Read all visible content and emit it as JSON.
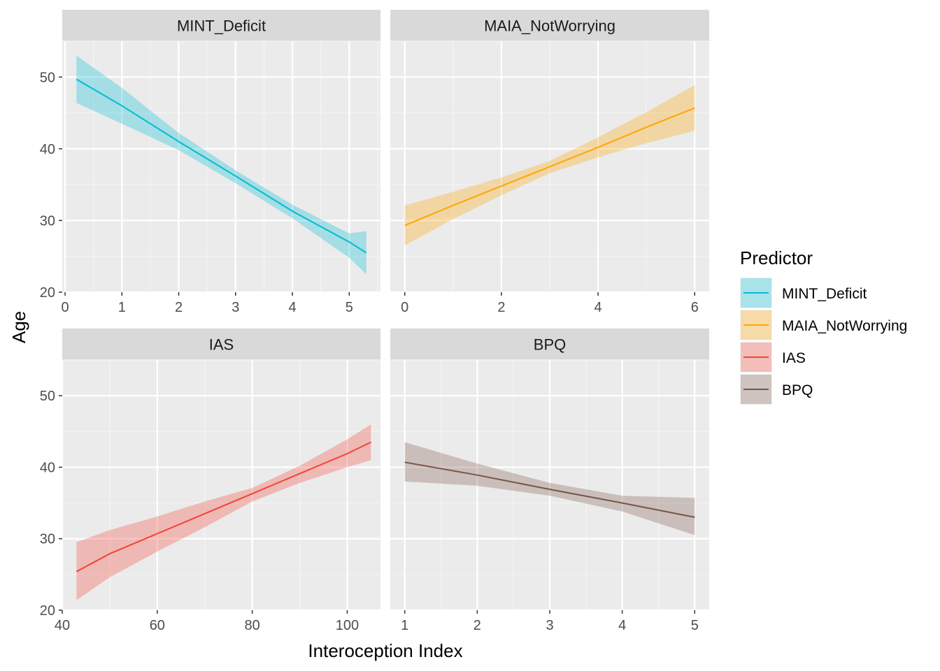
{
  "chart_data": [
    {
      "type": "line",
      "panel": "MINT_Deficit",
      "color": "#00BCD4",
      "x": [
        0.2,
        1,
        2,
        3,
        4,
        5,
        5.3
      ],
      "y": [
        49.7,
        46.0,
        41.0,
        36.2,
        31.3,
        27.0,
        25.5
      ],
      "ci_upper": [
        53.0,
        48.5,
        42.2,
        37.0,
        32.2,
        28.2,
        28.5
      ],
      "ci_lower": [
        46.4,
        43.5,
        39.8,
        35.2,
        30.3,
        24.8,
        22.5
      ],
      "x_ticks": [
        0,
        1,
        2,
        3,
        4,
        5
      ],
      "xlim": [
        -0.05,
        5.55
      ],
      "ylim": [
        20,
        55
      ],
      "y_ticks": [
        20,
        30,
        40,
        50
      ]
    },
    {
      "type": "line",
      "panel": "MAIA_NotWorrying",
      "color": "#FFA500",
      "x": [
        0,
        1,
        2,
        3,
        4,
        5,
        6
      ],
      "y": [
        29.3,
        32.1,
        34.8,
        37.5,
        40.2,
        43.0,
        45.7
      ],
      "ci_upper": [
        32.1,
        34.0,
        36.0,
        38.3,
        41.6,
        45.1,
        48.9
      ],
      "ci_lower": [
        26.5,
        30.2,
        33.5,
        36.6,
        38.8,
        40.8,
        42.5
      ],
      "x_ticks": [
        0,
        2,
        4,
        6
      ],
      "xlim": [
        -0.3,
        6.3
      ],
      "ylim": [
        20,
        55
      ],
      "y_ticks": [
        20,
        30,
        40,
        50
      ]
    },
    {
      "type": "line",
      "panel": "IAS",
      "color": "#F44336",
      "x": [
        43,
        50,
        60,
        70,
        80,
        90,
        100,
        105
      ],
      "y": [
        25.4,
        27.9,
        30.7,
        33.5,
        36.3,
        39.1,
        41.9,
        43.5
      ],
      "ci_upper": [
        29.5,
        31.2,
        33.1,
        35.2,
        37.1,
        40.2,
        43.9,
        46.0
      ],
      "ci_lower": [
        21.4,
        24.6,
        28.2,
        31.6,
        35.2,
        37.8,
        40.0,
        41.0
      ],
      "x_ticks": [
        40,
        60,
        80,
        100
      ],
      "xlim": [
        40,
        107
      ],
      "ylim": [
        20,
        55
      ],
      "y_ticks": [
        20,
        30,
        40,
        50
      ]
    },
    {
      "type": "line",
      "panel": "BPQ",
      "color": "#795548",
      "x": [
        1,
        2,
        3,
        4,
        5
      ],
      "y": [
        40.7,
        38.9,
        36.9,
        35.0,
        33.0
      ],
      "ci_upper": [
        43.5,
        40.5,
        37.8,
        36.0,
        35.7
      ],
      "ci_lower": [
        38.0,
        37.4,
        36.0,
        33.8,
        30.5
      ],
      "x_ticks": [
        1,
        2,
        3,
        4,
        5
      ],
      "xlim": [
        0.8,
        5.2
      ],
      "ylim": [
        20,
        55
      ],
      "y_ticks": [
        20,
        30,
        40,
        50
      ]
    }
  ],
  "xlabel": "Interoception Index",
  "ylabel": "Age",
  "legend": {
    "title": "Predictor",
    "position": "right",
    "items": [
      "MINT_Deficit",
      "MAIA_NotWorrying",
      "IAS",
      "BPQ"
    ],
    "colors": [
      "#00BCD4",
      "#FFA500",
      "#F44336",
      "#795548"
    ]
  },
  "grid": true
}
